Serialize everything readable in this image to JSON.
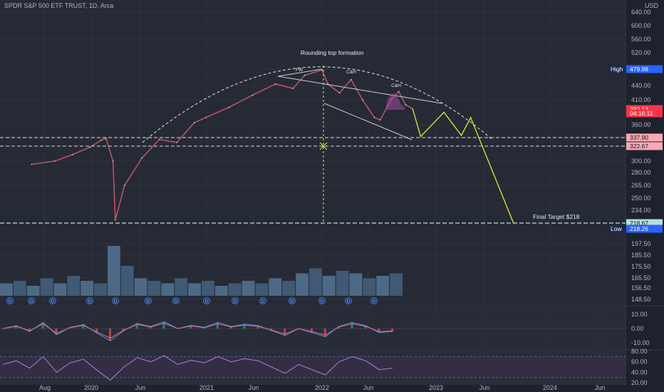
{
  "header": {
    "symbol_line": "SPDR S&P 500 ETF TRUST, 1D, Arca",
    "currency": "USD"
  },
  "chart_data": {
    "type": "line",
    "title": "SPDR S&P 500 ETF TRUST, 1D, Arca",
    "x_ticks": [
      "Aug",
      "2020",
      "Jun",
      "2021",
      "Jun",
      "2022",
      "Jun",
      "2023",
      "Jun",
      "2024",
      "Jun"
    ],
    "price_axis": {
      "ticks": [
        640.0,
        600.0,
        560.0,
        520.0,
        480.0,
        440.0,
        410.0,
        360.0,
        330.0,
        300.0,
        280.0,
        265.0,
        250.0,
        234.0,
        197.5,
        185.5,
        175.5,
        165.5,
        156.5,
        148.5
      ],
      "ylim": [
        148.5,
        640.0
      ],
      "scale": "log"
    },
    "tags": [
      {
        "label": "High",
        "value": "479.98",
        "color": "#2962ff"
      },
      {
        "label": "",
        "value": "392.13",
        "color": "#f23645"
      },
      {
        "label": "",
        "value": "04:16:11",
        "color": "#f23645"
      },
      {
        "label": "",
        "value": "337.90",
        "color": "#f7a9b4"
      },
      {
        "label": "",
        "value": "322.67",
        "color": "#f7a9b4"
      },
      {
        "label": "",
        "value": "218.67",
        "color": "#b2dfdb"
      },
      {
        "label": "Low",
        "value": "218.26",
        "color": "#2962ff"
      }
    ],
    "annotations": [
      "Rounding top formation",
      "Final Target $218",
      "C&H",
      "C&H",
      "FW"
    ],
    "price_series": [
      {
        "t": 2019.5,
        "p": 295
      },
      {
        "t": 2019.7,
        "p": 300
      },
      {
        "t": 2019.85,
        "p": 310
      },
      {
        "t": 2020.0,
        "p": 322
      },
      {
        "t": 2020.1,
        "p": 334
      },
      {
        "t": 2020.14,
        "p": 337
      },
      {
        "t": 2020.2,
        "p": 300
      },
      {
        "t": 2020.22,
        "p": 222
      },
      {
        "t": 2020.3,
        "p": 265
      },
      {
        "t": 2020.45,
        "p": 305
      },
      {
        "t": 2020.6,
        "p": 335
      },
      {
        "t": 2020.75,
        "p": 330
      },
      {
        "t": 2020.9,
        "p": 365
      },
      {
        "t": 2021.0,
        "p": 375
      },
      {
        "t": 2021.2,
        "p": 395
      },
      {
        "t": 2021.4,
        "p": 420
      },
      {
        "t": 2021.6,
        "p": 445
      },
      {
        "t": 2021.75,
        "p": 435
      },
      {
        "t": 2021.85,
        "p": 465
      },
      {
        "t": 2022.0,
        "p": 478
      },
      {
        "t": 2022.05,
        "p": 445
      },
      {
        "t": 2022.15,
        "p": 425
      },
      {
        "t": 2022.25,
        "p": 455
      },
      {
        "t": 2022.35,
        "p": 410
      },
      {
        "t": 2022.45,
        "p": 375
      },
      {
        "t": 2022.5,
        "p": 370
      },
      {
        "t": 2022.6,
        "p": 412
      },
      {
        "t": 2022.66,
        "p": 428
      },
      {
        "t": 2022.72,
        "p": 400
      },
      {
        "t": 2022.78,
        "p": 392
      }
    ],
    "projection_path": [
      {
        "t": 2022.78,
        "p": 392
      },
      {
        "t": 2022.85,
        "p": 340
      },
      {
        "t": 2023.05,
        "p": 385
      },
      {
        "t": 2023.2,
        "p": 342
      },
      {
        "t": 2023.28,
        "p": 375
      },
      {
        "t": 2023.65,
        "p": 218
      }
    ],
    "volume_series": [
      0.25,
      0.3,
      0.2,
      0.35,
      0.25,
      0.4,
      0.3,
      0.25,
      1.0,
      0.6,
      0.35,
      0.3,
      0.25,
      0.35,
      0.25,
      0.3,
      0.2,
      0.25,
      0.3,
      0.25,
      0.35,
      0.3,
      0.45,
      0.55,
      0.4,
      0.5,
      0.45,
      0.35,
      0.4,
      0.45
    ],
    "macd_axis": {
      "ticks": [
        10.0,
        0.0,
        -10.0
      ],
      "ylim": [
        -13,
        13
      ]
    },
    "rsi_axis": {
      "ticks": [
        80.0,
        60.0,
        40.0,
        20.0
      ],
      "ylim": [
        20,
        80
      ]
    },
    "rsi_series": [
      55,
      62,
      48,
      70,
      40,
      58,
      65,
      44,
      25,
      50,
      68,
      60,
      72,
      55,
      63,
      58,
      70,
      60,
      66,
      62,
      50,
      38,
      55,
      45,
      35,
      60,
      70,
      62,
      45,
      48
    ]
  },
  "colors": {
    "background": "#1e222d",
    "projection": "#e5e53b",
    "channel": "#c9cdd6",
    "dashed": "#d9dbe0"
  }
}
